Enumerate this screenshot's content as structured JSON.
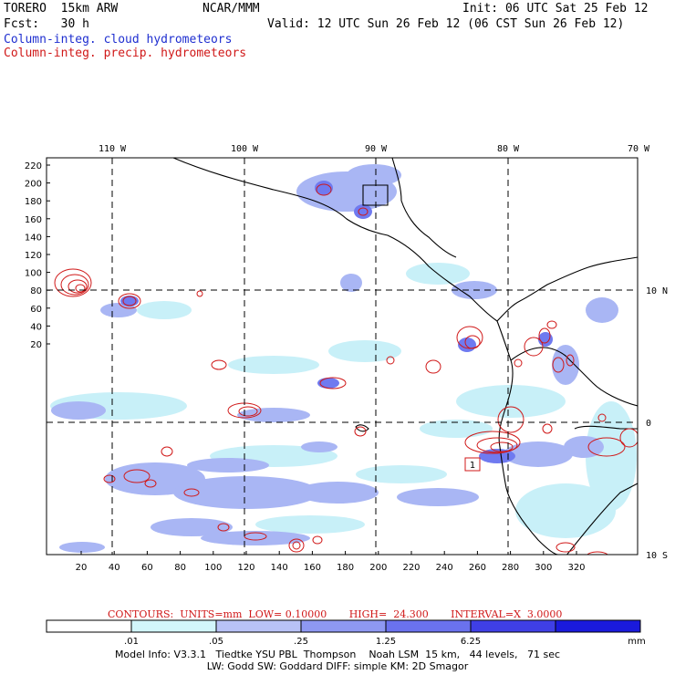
{
  "header": {
    "model": "TORERO  15km ARW",
    "org": "NCAR/MMM",
    "init": "Init: 06 UTC Sat 25 Feb 12",
    "fcst": "Fcst:   30 h",
    "valid": "Valid: 12 UTC Sun 26 Feb 12 (06 CST Sun 26 Feb 12)",
    "field1": "Column-integ. cloud hydrometeors",
    "field2": "Column-integ. precip. hydrometeors"
  },
  "map": {
    "lon_labels": [
      "110 W",
      "100 W",
      "90 W",
      "80 W",
      "70 W"
    ],
    "lat_labels": [
      "10 N",
      "0",
      "10 S"
    ],
    "y_ticks": [
      "220",
      "200",
      "180",
      "160",
      "140",
      "120",
      "100",
      "80",
      "60",
      "40",
      "20"
    ],
    "x_ticks": [
      "20",
      "40",
      "60",
      "80",
      "100",
      "120",
      "140",
      "160",
      "180",
      "200",
      "220",
      "240",
      "260",
      "280",
      "300",
      "320"
    ],
    "station_label": "1",
    "colors": {
      "cloud_light": "#c8f0f8",
      "cloud_mid": "#a9b6f4",
      "cloud_dark": "#6f7af0",
      "precip_contour": "#d01818",
      "coast": "#000000"
    }
  },
  "contours": {
    "text": "CONTOURS:  UNITS=mm  LOW= 0.10000       HIGH=  24.300       INTERVAL=X  3.0000"
  },
  "legend": {
    "labels": [
      ".01",
      ".05",
      ".25",
      "1.25",
      "6.25",
      "mm"
    ],
    "colors": [
      "#ffffff",
      "#d2f6fb",
      "#b8c2f6",
      "#8e98f2",
      "#6a72ee",
      "#3f3fe6",
      "#1a1adc"
    ]
  },
  "model_info": {
    "line1": "Model Info: V3.3.1   Tiedtke YSU PBL  Thompson    Noah LSM  15 km,   44 levels,   71 sec",
    "line2": "LW: Godd SW: Goddard DIFF: simple KM: 2D Smagor"
  }
}
